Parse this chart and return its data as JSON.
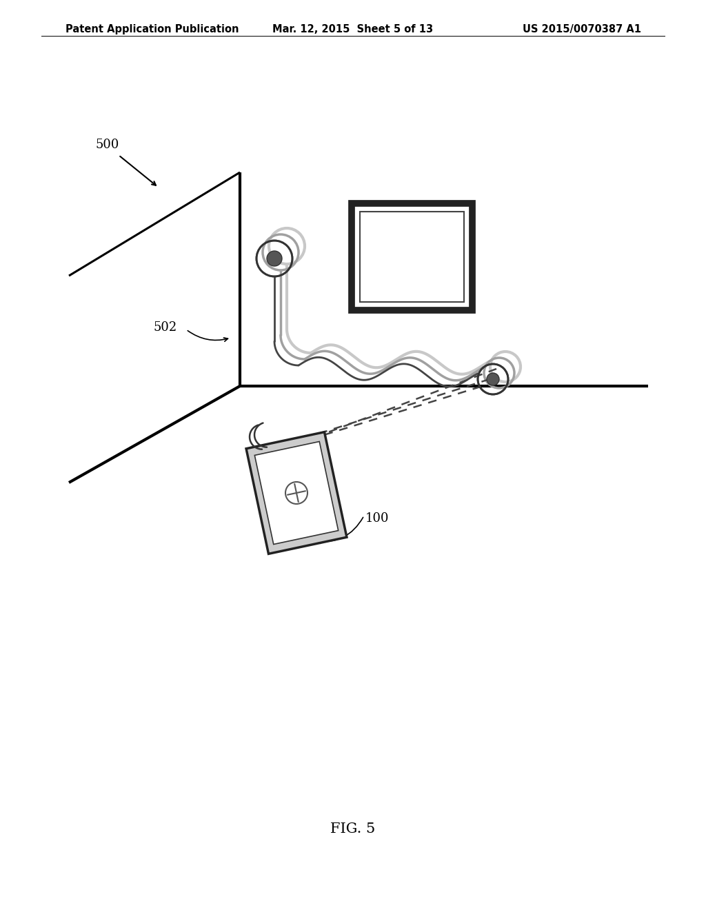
{
  "background_color": "#ffffff",
  "header_left": "Patent Application Publication",
  "header_mid": "Mar. 12, 2015  Sheet 5 of 13",
  "header_right": "US 2015/0070387 A1",
  "footer_label": "FIG. 5",
  "label_500": "500",
  "label_502": "502",
  "label_100": "100",
  "header_fontsize": 10.5,
  "footer_fontsize": 15
}
